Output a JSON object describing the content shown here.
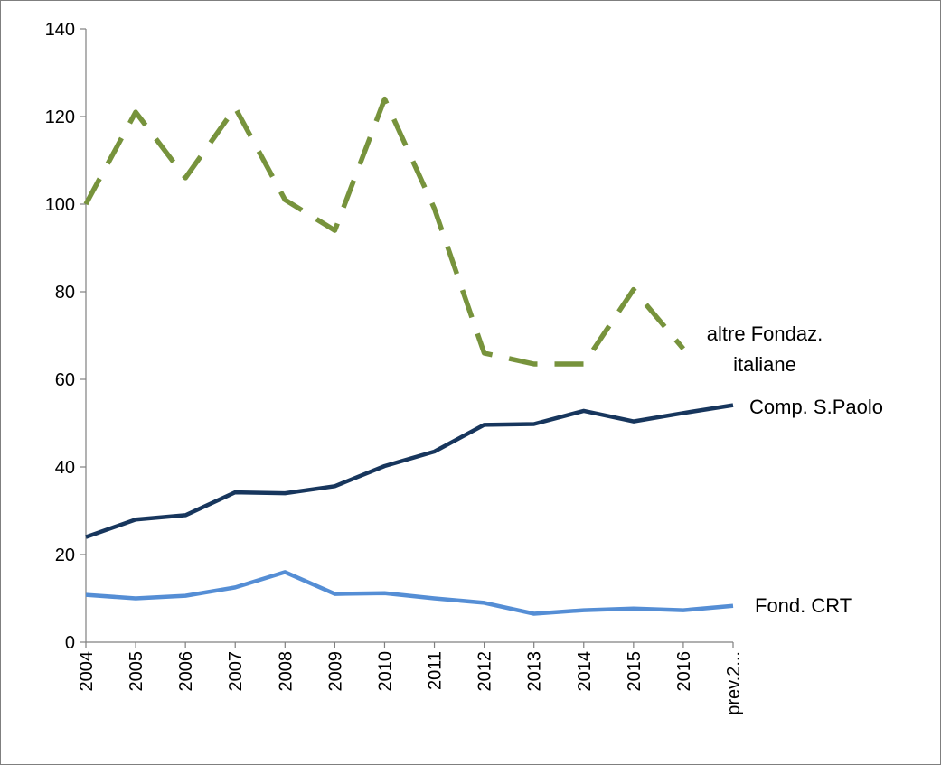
{
  "chart_data": {
    "type": "line",
    "title": "",
    "xlabel": "",
    "ylabel": "",
    "categories": [
      "2004",
      "2005",
      "2006",
      "2007",
      "2008",
      "2009",
      "2010",
      "2011",
      "2012",
      "2013",
      "2014",
      "2015",
      "2016",
      "prev.2..."
    ],
    "ylim": [
      0,
      140
    ],
    "yticks": [
      0,
      20,
      40,
      60,
      80,
      100,
      120,
      140
    ],
    "grid": false,
    "series": [
      {
        "name": "altre Fondaz. italiane",
        "label_lines": [
          "altre Fondaz.",
          "italiane"
        ],
        "color": "#77933c",
        "dash": "dashed",
        "values": [
          100,
          121,
          106,
          122,
          101,
          94,
          124,
          99,
          66,
          63.5,
          63.5,
          80.5,
          67,
          null
        ]
      },
      {
        "name": "Comp. S.Paolo",
        "label_lines": [
          "Comp. S.Paolo"
        ],
        "color": "#17365d",
        "dash": "solid",
        "values": [
          24,
          28,
          29,
          34.2,
          34,
          35.6,
          40.2,
          43.5,
          49.6,
          49.8,
          52.8,
          50.4,
          52.3,
          54.1
        ]
      },
      {
        "name": "Fond. CRT",
        "label_lines": [
          "Fond. CRT"
        ],
        "color": "#558ed5",
        "dash": "solid",
        "values": [
          10.8,
          10,
          10.6,
          12.5,
          16,
          11,
          11.2,
          10,
          9,
          6.5,
          7.3,
          7.7,
          7.3,
          8.3
        ]
      }
    ]
  }
}
